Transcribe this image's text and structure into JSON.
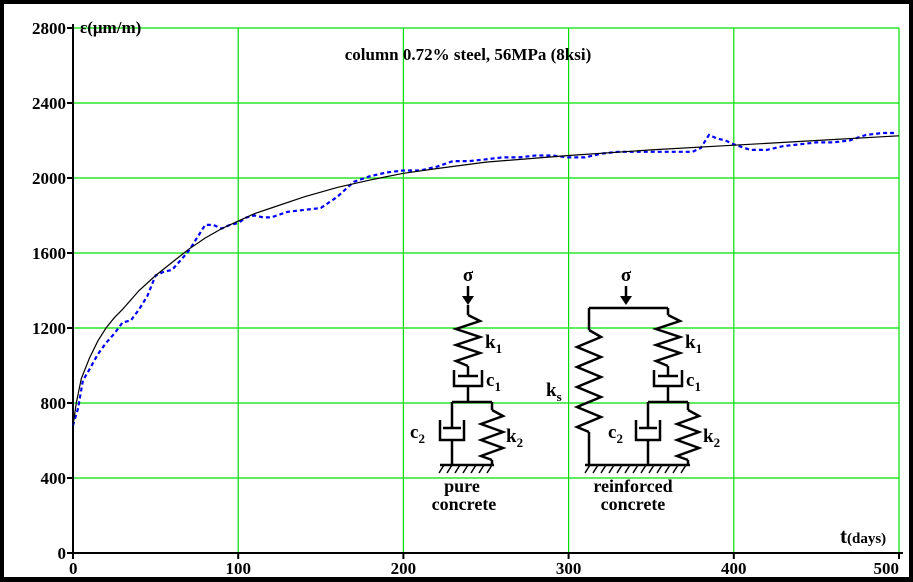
{
  "chart_data": {
    "type": "line",
    "title": "column 0.72% steel, 56MPa (8ksi)",
    "xlabel_prefix": "t",
    "xlabel_unit": "(days)",
    "ylabel": "ε(μm/m)",
    "xlim": [
      0,
      500
    ],
    "ylim": [
      0,
      2800
    ],
    "x_ticks": [
      0,
      100,
      200,
      300,
      400,
      500
    ],
    "y_ticks": [
      0,
      400,
      800,
      1200,
      1600,
      2000,
      2400,
      2800
    ],
    "grid": true,
    "series": [
      {
        "style": "dashed",
        "color": "#0000ff",
        "x": [
          0,
          3,
          6,
          10,
          15,
          20,
          25,
          30,
          35,
          40,
          45,
          50,
          55,
          60,
          65,
          70,
          75,
          80,
          85,
          90,
          95,
          100,
          105,
          110,
          115,
          120,
          130,
          140,
          150,
          155,
          160,
          170,
          180,
          190,
          200,
          210,
          220,
          230,
          240,
          250,
          260,
          270,
          280,
          290,
          300,
          310,
          320,
          330,
          340,
          350,
          360,
          370,
          375,
          380,
          385,
          390,
          395,
          400,
          410,
          420,
          430,
          440,
          450,
          460,
          470,
          480,
          490,
          497
        ],
        "y": [
          680,
          770,
          920,
          980,
          1060,
          1120,
          1170,
          1230,
          1240,
          1300,
          1370,
          1480,
          1500,
          1510,
          1560,
          1610,
          1680,
          1750,
          1750,
          1730,
          1750,
          1760,
          1790,
          1800,
          1790,
          1790,
          1820,
          1830,
          1840,
          1870,
          1900,
          1980,
          2010,
          2030,
          2040,
          2040,
          2060,
          2090,
          2090,
          2100,
          2110,
          2110,
          2120,
          2120,
          2110,
          2110,
          2130,
          2140,
          2140,
          2140,
          2140,
          2140,
          2140,
          2160,
          2230,
          2210,
          2200,
          2180,
          2150,
          2150,
          2170,
          2180,
          2190,
          2190,
          2200,
          2230,
          2240,
          2240
        ]
      },
      {
        "style": "solid",
        "color": "#000000",
        "x": [
          0,
          2,
          5,
          10,
          15,
          20,
          25,
          30,
          40,
          50,
          60,
          70,
          80,
          90,
          100,
          110,
          120,
          140,
          160,
          180,
          200,
          220,
          250,
          300,
          350,
          400,
          450,
          500
        ],
        "y": [
          680,
          800,
          930,
          1040,
          1130,
          1200,
          1255,
          1300,
          1400,
          1480,
          1550,
          1620,
          1680,
          1730,
          1770,
          1810,
          1840,
          1900,
          1950,
          1990,
          2025,
          2050,
          2085,
          2120,
          2150,
          2175,
          2200,
          2225
        ]
      }
    ]
  },
  "models": {
    "stress_symbol": "σ",
    "k1": "k",
    "k1_sub": "1",
    "c1": "c",
    "c1_sub": "1",
    "c2": "c",
    "c2_sub": "2",
    "k2": "k",
    "k2_sub": "2",
    "ks": "k",
    "ks_sub": "s",
    "pure_line1": "pure",
    "pure_line2": "concrete",
    "reinforced_line1": "reinforced",
    "reinforced_line2": "concrete"
  }
}
